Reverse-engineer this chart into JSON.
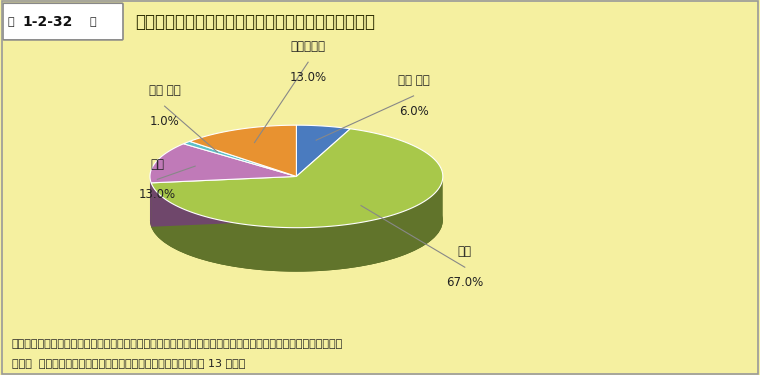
{
  "title_box_label": "第 1-2-32 図",
  "title_main": "科学技術が生活を快適にしたという意見に対する意識",
  "values": [
    6.0,
    67.0,
    13.0,
    1.0,
    13.0
  ],
  "colors": [
    "#4a7bbf",
    "#a8c84a",
    "#c07ab8",
    "#5dbfc8",
    "#e89230"
  ],
  "shadow_color": "#4a5e1a",
  "bg_color": "#f5f0a0",
  "header_bg": "#bcd435",
  "note_line1": "注）「科学技術は我々の生活をより健康的に、簡単に、そして快適なものにした」という文章についての回答。",
  "note_line2": "資料：  科学技術政策研究所「科学技術に関する意識調査（平成 13 年）」",
  "label_texts": [
    "強く 賛成",
    "賛成",
    "反対",
    "強く 反対",
    "わからない"
  ],
  "pct_texts": [
    "6.0%",
    "67.0%",
    "13.0%",
    "1.0%",
    "13.0%"
  ]
}
